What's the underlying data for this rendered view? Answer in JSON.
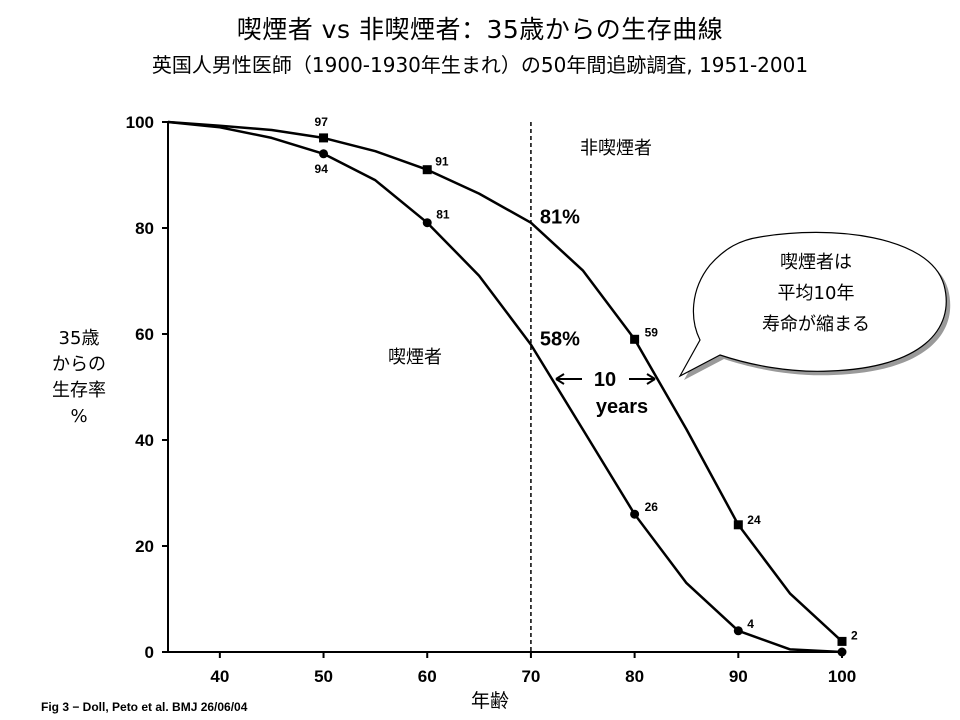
{
  "title": "喫煙者 vs 非喫煙者：35歳からの生存曲線",
  "subtitle": "英国人男性医師（1900-1930年生まれ）の50年間追跡調査, 1951-2001",
  "source": "Fig 3 − Doll, Peto et al.  BMJ 26/06/04",
  "callout": {
    "lines": [
      "喫煙者は",
      "平均10年",
      "寿命が縮まる"
    ]
  },
  "annotations": {
    "nonsmoker_at_70": "81%",
    "smoker_at_70": "58%",
    "gap_top": "10",
    "gap_bottom": "years"
  },
  "chart_data": {
    "type": "line",
    "title": "喫煙者 vs 非喫煙者：35歳からの生存曲線",
    "subtitle": "英国人男性医師（1900-1930年生まれ）の50年間追跡調査, 1951-2001",
    "xlabel": "年齢",
    "ylabel_lines": [
      "35歳",
      "からの",
      "生存率",
      "%"
    ],
    "xlim": [
      35,
      100
    ],
    "ylim": [
      0,
      100
    ],
    "xticks": [
      40,
      50,
      60,
      70,
      80,
      90,
      100
    ],
    "yticks": [
      0,
      20,
      40,
      60,
      80,
      100
    ],
    "grid": false,
    "reference_line": {
      "x": 70,
      "style": "dashed"
    },
    "series": [
      {
        "name": "非喫煙者",
        "marker": "square",
        "x": [
          35,
          40,
          45,
          50,
          55,
          60,
          65,
          70,
          75,
          80,
          85,
          90,
          95,
          100
        ],
        "y": [
          100,
          99.3,
          98.5,
          97,
          94.5,
          91,
          86.5,
          81,
          72,
          59,
          42,
          24,
          11,
          2
        ],
        "labeled_points": [
          {
            "x": 50,
            "y": 97,
            "label": "97"
          },
          {
            "x": 60,
            "y": 91,
            "label": "91"
          },
          {
            "x": 80,
            "y": 59,
            "label": "59"
          },
          {
            "x": 90,
            "y": 24,
            "label": "24"
          },
          {
            "x": 100,
            "y": 2,
            "label": "2"
          }
        ]
      },
      {
        "name": "喫煙者",
        "marker": "circle",
        "x": [
          35,
          40,
          45,
          50,
          55,
          60,
          65,
          70,
          75,
          80,
          85,
          90,
          95,
          100
        ],
        "y": [
          100,
          99,
          97,
          94,
          89,
          81,
          71,
          58,
          42,
          26,
          13,
          4,
          0.5,
          0
        ],
        "labeled_points": [
          {
            "x": 50,
            "y": 94,
            "label": "94"
          },
          {
            "x": 60,
            "y": 81,
            "label": "81"
          },
          {
            "x": 80,
            "y": 26,
            "label": "26"
          },
          {
            "x": 90,
            "y": 4,
            "label": "4"
          },
          {
            "x": 100,
            "y": 0,
            "label": ""
          }
        ]
      }
    ]
  }
}
